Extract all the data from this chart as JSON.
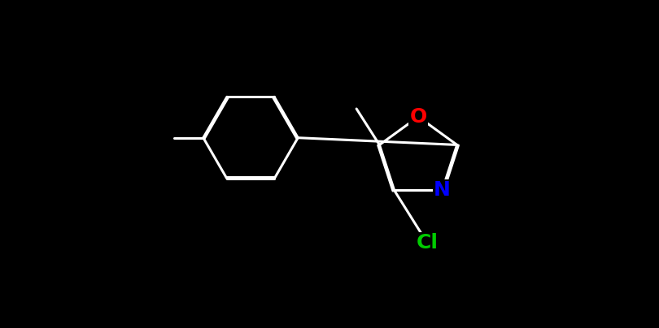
{
  "background_color": "#000000",
  "bond_color": "#ffffff",
  "fig_width": 8.1,
  "fig_height": 4.04,
  "dpi": 100,
  "lw": 2.2,
  "atom_colors": {
    "O": "#ff0000",
    "N": "#0000ff",
    "Cl": "#00cc00",
    "C": "#ffffff"
  },
  "font_size": 18,
  "font_weight": "bold",
  "font_family": "DejaVu Sans"
}
